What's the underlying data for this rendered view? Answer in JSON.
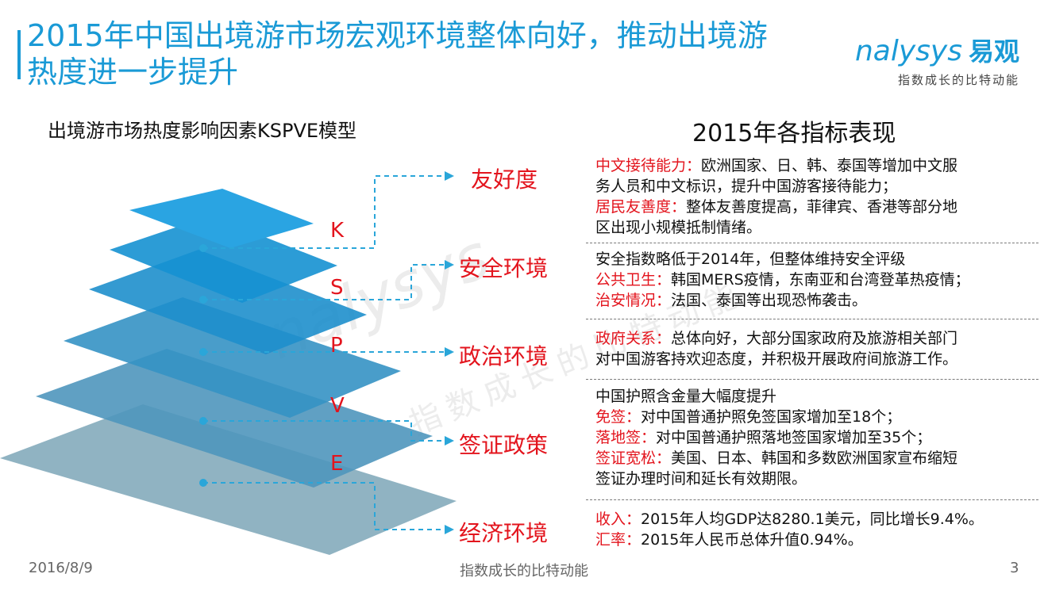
{
  "title": "2015年中国出境游市场宏观环境整体向好，推动出境游热度进一步提升",
  "logo": {
    "brand": "nalysys",
    "brand_cn": "易观",
    "tagline": "指数成长的比特动能"
  },
  "left_subtitle": "出境游市场热度影响因素KSPVE模型",
  "right_subtitle": "2015年各指标表现",
  "factors": [
    {
      "letter": "K",
      "label": "友好度"
    },
    {
      "letter": "S",
      "label": "安全环境"
    },
    {
      "letter": "P",
      "label": "政治环境"
    },
    {
      "letter": "V",
      "label": "签证政策"
    },
    {
      "letter": "E",
      "label": "经济环境"
    }
  ],
  "blocks": [
    {
      "lines": [
        {
          "hl": "中文接待能力：",
          "text": "欧洲国家、日、韩、泰国等增加中文服"
        },
        {
          "hl": "",
          "text": "务人员和中文标识，提升中国游客接待能力；"
        },
        {
          "hl": "居民友善度：",
          "text": "整体友善度提高，菲律宾、香港等部分地"
        },
        {
          "hl": "",
          "text": "区出现小规模抵制情绪。"
        }
      ]
    },
    {
      "lines": [
        {
          "hl": "",
          "text": "安全指数略低于2014年，但整体维持安全评级"
        },
        {
          "hl": "公共卫生：",
          "text": "韩国MERS疫情，东南亚和台湾登革热疫情；"
        },
        {
          "hl": "治安情况：",
          "text": "法国、泰国等出现恐怖袭击。"
        }
      ]
    },
    {
      "lines": [
        {
          "hl": "政府关系：",
          "text": "总体向好，大部分国家政府及旅游相关部门"
        },
        {
          "hl": "",
          "text": "对中国游客持欢迎态度，并积极开展政府间旅游工作。"
        }
      ]
    },
    {
      "lines": [
        {
          "hl": "",
          "text": "中国护照含金量大幅度提升"
        },
        {
          "hl": "免签：",
          "text": "对中国普通护照免签国家增加至18个；"
        },
        {
          "hl": "落地签：",
          "text": "对中国普通护照落地签国家增加至35个；"
        },
        {
          "hl": "签证宽松：",
          "text": "美国、日本、韩国和多数欧洲国家宣布缩短"
        },
        {
          "hl": "",
          "text": "签证办理时间和延长有效期限。"
        }
      ]
    },
    {
      "lines": [
        {
          "hl": "收入：",
          "text": "2015年人均GDP达8280.1美元，同比增长9.4%。"
        },
        {
          "hl": "汇率：",
          "text": "2015年人民币总体升值0.94%。"
        }
      ]
    }
  ],
  "footer": {
    "date": "2016/8/9",
    "center": "指数成长的比特动能",
    "page": "3"
  },
  "colors": {
    "accent": "#1a9ad6",
    "highlight": "#e3141d"
  }
}
